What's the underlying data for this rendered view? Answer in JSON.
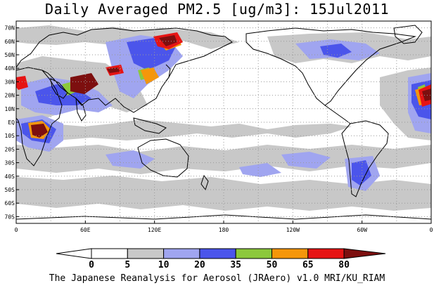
{
  "title": "Daily Averaged PM2.5 [ug/m3]: 15Jul2011",
  "footer": "The Japanese Reanalysis for Aerosol (JRAero) v1.0 MRI/KU_RIAM",
  "map": {
    "lat_labels": [
      "70N",
      "60N",
      "50N",
      "40N",
      "30N",
      "20N",
      "10N",
      "EQ",
      "10S",
      "20S",
      "30S",
      "40S",
      "50S",
      "60S",
      "70S"
    ],
    "lon_labels": [
      "0",
      "60E",
      "120E",
      "180",
      "120W",
      "60W",
      "0"
    ],
    "ocean_color": "#ffffff",
    "coastline_color": "#000000",
    "grid_color": "#999999"
  },
  "colorbar": {
    "ticks": [
      "0",
      "5",
      "10",
      "20",
      "35",
      "50",
      "65",
      "80"
    ],
    "colors": [
      "#ffffff",
      "#ffffff",
      "#c8c8c8",
      "#a0a5f0",
      "#4b55eb",
      "#8cc83c",
      "#f5960a",
      "#e61414",
      "#7d0f0f"
    ]
  }
}
